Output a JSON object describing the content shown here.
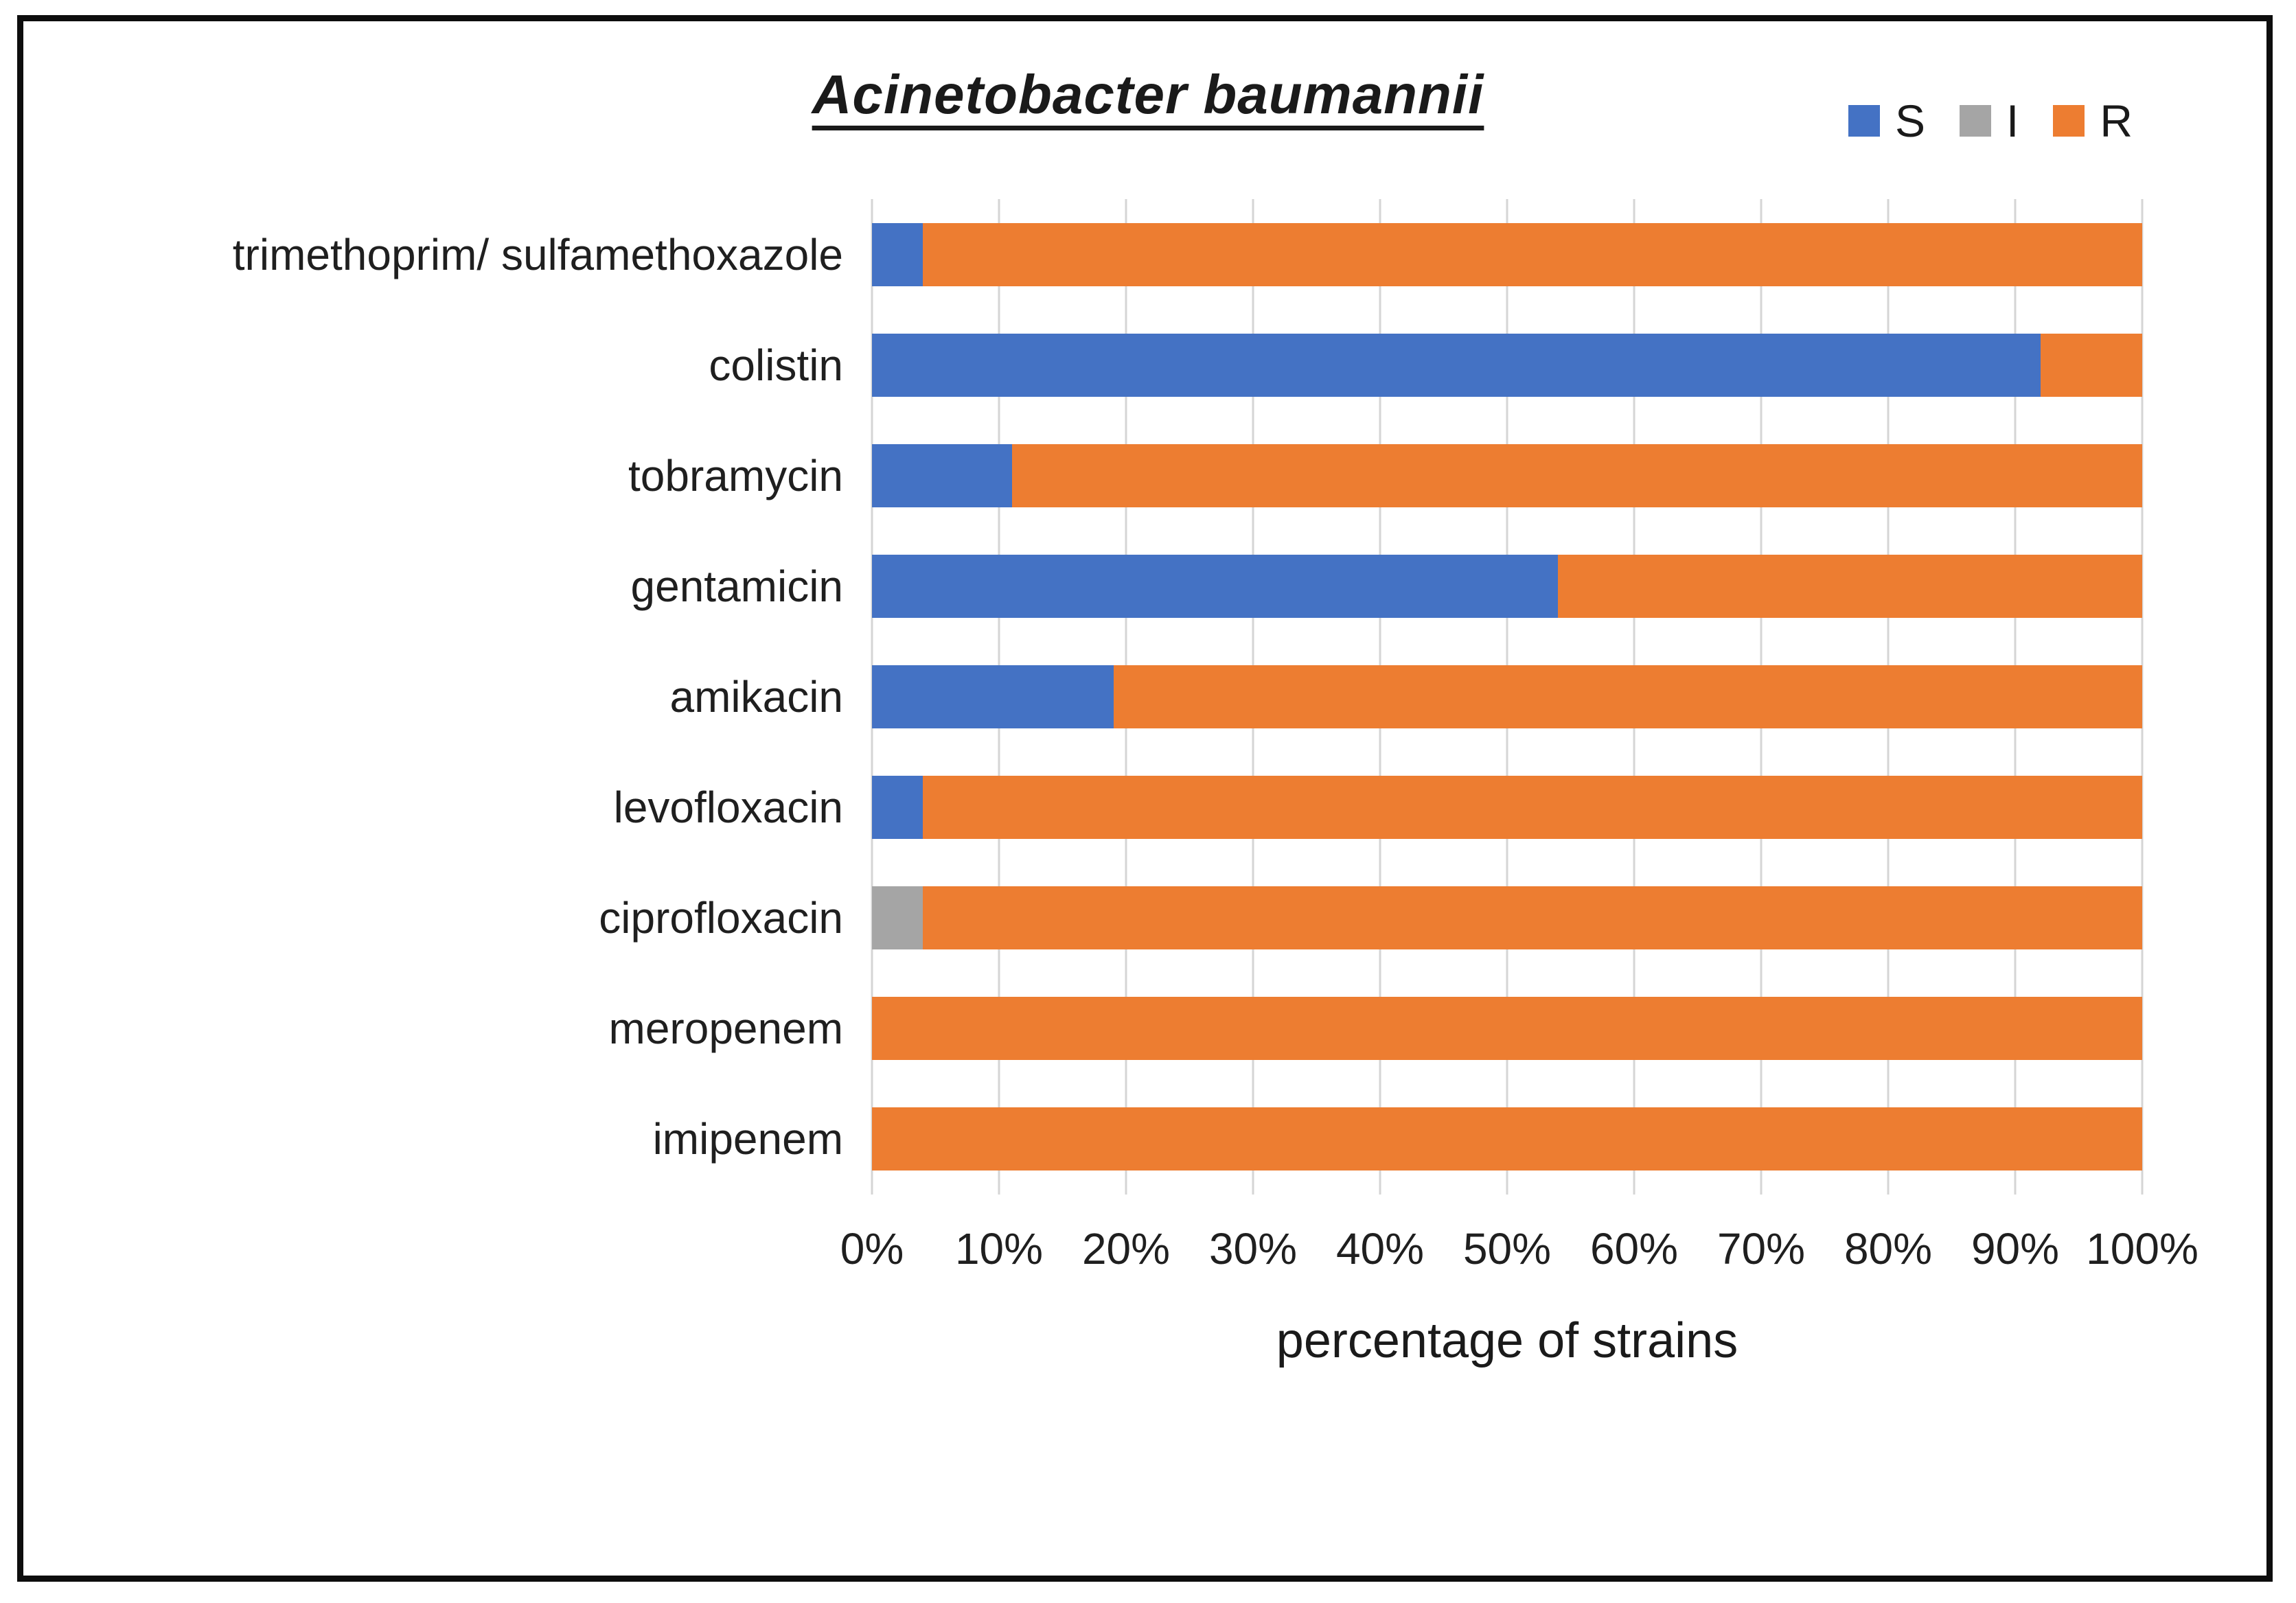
{
  "chart_data": {
    "type": "bar",
    "orientation": "horizontal",
    "stacked": true,
    "title": "Acinetobacter baumannii",
    "categories": [
      "trimethoprim/ sulfamethoxazole",
      "colistin",
      "tobramycin",
      "gentamicin",
      "amikacin",
      "levofloxacin",
      "ciprofloxacin",
      "meropenem",
      "imipenem"
    ],
    "series": [
      {
        "name": "S",
        "color": "#4472C4",
        "values": [
          4,
          92,
          11,
          54,
          19,
          4,
          0,
          0,
          0
        ]
      },
      {
        "name": "I",
        "color": "#A5A5A5",
        "values": [
          0,
          0,
          0,
          0,
          0,
          0,
          4,
          0,
          0
        ]
      },
      {
        "name": "R",
        "color": "#ED7D31",
        "values": [
          96,
          8,
          89,
          46,
          81,
          96,
          96,
          100,
          100
        ]
      }
    ],
    "xlabel": "percentage of strains",
    "x_ticks": [
      "0%",
      "10%",
      "20%",
      "30%",
      "40%",
      "50%",
      "60%",
      "70%",
      "80%",
      "90%",
      "100%"
    ],
    "xlim": [
      0,
      100
    ],
    "grid": true,
    "legend_position": "top-right"
  },
  "colors": {
    "grid": "#d5d5d5",
    "frame": "#0d0d0d",
    "text": "#262626"
  }
}
